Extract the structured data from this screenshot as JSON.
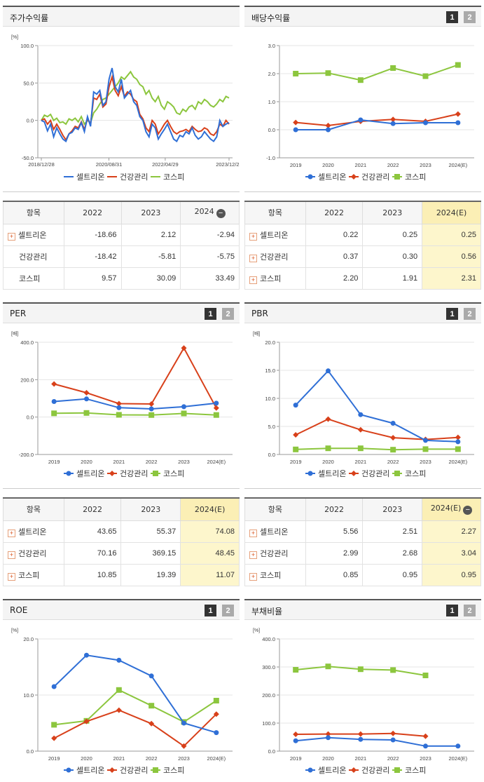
{
  "colors": {
    "celltrion": "#2f6fd6",
    "health": "#d8401a",
    "kospi": "#8cc63e"
  },
  "legend": [
    "셀트리온",
    "건강관리",
    "코스피"
  ],
  "charts": {
    "stock": {
      "title": "주가수익률",
      "unit": "[%]",
      "pager": null,
      "yticks": [
        "100.0",
        "50.0",
        "0.0",
        "-50.0"
      ],
      "xticks": [
        "2018/12/28",
        "2020/08/31",
        "2022/04/29",
        "2023/12/28"
      ]
    },
    "dividend": {
      "title": "배당수익률",
      "unit": "",
      "pager": [
        "1",
        "2"
      ],
      "yticks": [
        "3.0",
        "2.0",
        "1.0",
        "0.0",
        "-1.0"
      ],
      "xticks": [
        "2019",
        "2020",
        "2021",
        "2022",
        "2023",
        "2024(E)"
      ]
    },
    "per": {
      "title": "PER",
      "unit": "[배]",
      "pager": [
        "1",
        "2"
      ],
      "yticks": [
        "400.0",
        "200.0",
        "0.0",
        "-200.0"
      ],
      "xticks": [
        "2019",
        "2020",
        "2021",
        "2022",
        "2023",
        "2024(E)"
      ]
    },
    "pbr": {
      "title": "PBR",
      "unit": "[배]",
      "pager": [
        "1",
        "2"
      ],
      "yticks": [
        "20.0",
        "15.0",
        "10.0",
        "5.0",
        "0.0"
      ],
      "xticks": [
        "2019",
        "2020",
        "2021",
        "2022",
        "2023",
        "2024(E)"
      ]
    },
    "roe": {
      "title": "ROE",
      "unit": "[%]",
      "pager": [
        "1",
        "2"
      ],
      "yticks": [
        "20.0",
        "10.0",
        "0.0"
      ],
      "xticks": [
        "2019",
        "2020",
        "2021",
        "2022",
        "2023",
        "2024(E)"
      ]
    },
    "debt": {
      "title": "부채비율",
      "unit": "[%]",
      "pager": [
        "1",
        "2"
      ],
      "yticks": [
        "400.0",
        "300.0",
        "200.0",
        "100.0",
        "0.0"
      ],
      "xticks": [
        "2019",
        "2020",
        "2021",
        "2022",
        "2023",
        "2024(E)"
      ]
    }
  },
  "chart_data": [
    {
      "type": "line",
      "id": "stock",
      "title": "주가수익률",
      "ylabel": "[%]",
      "ylim": [
        -50,
        100
      ],
      "x_ticks": [
        "2018/12/28",
        "2020/08/31",
        "2022/04/29",
        "2023/12/28"
      ],
      "series": [
        {
          "name": "셀트리온",
          "values": [
            0,
            -2,
            -14,
            -5,
            -22,
            -10,
            -18,
            -25,
            -28,
            -18,
            -16,
            -10,
            -12,
            -3,
            -15,
            5,
            -8,
            38,
            35,
            40,
            20,
            25,
            55,
            70,
            45,
            38,
            55,
            30,
            35,
            40,
            25,
            20,
            5,
            0,
            -15,
            -22,
            -5,
            -10,
            -25,
            -18,
            -12,
            -5,
            -15,
            -25,
            -28,
            -20,
            -22,
            -15,
            -18,
            -10,
            -20,
            -25,
            -22,
            -15,
            -20,
            -25,
            -28,
            -22,
            0,
            -8,
            -5,
            -3
          ]
        },
        {
          "name": "건강관리",
          "values": [
            0,
            2,
            -5,
            0,
            -12,
            -5,
            -12,
            -20,
            -26,
            -18,
            -14,
            -8,
            -10,
            -2,
            -12,
            2,
            -5,
            30,
            28,
            35,
            18,
            22,
            45,
            58,
            40,
            33,
            45,
            32,
            38,
            35,
            28,
            25,
            8,
            2,
            -10,
            -15,
            0,
            -5,
            -18,
            -12,
            -5,
            0,
            -8,
            -15,
            -18,
            -15,
            -14,
            -12,
            -15,
            -8,
            -12,
            -15,
            -14,
            -10,
            -12,
            -18,
            -20,
            -15,
            -5,
            -8,
            0,
            -5
          ]
        },
        {
          "name": "코스피",
          "values": [
            0,
            7,
            5,
            8,
            0,
            3,
            -3,
            -2,
            -5,
            2,
            0,
            3,
            -2,
            5,
            -5,
            0,
            -3,
            10,
            15,
            22,
            28,
            30,
            35,
            40,
            45,
            50,
            58,
            55,
            60,
            65,
            58,
            55,
            48,
            45,
            35,
            40,
            30,
            25,
            32,
            20,
            15,
            25,
            22,
            18,
            10,
            8,
            15,
            12,
            18,
            20,
            15,
            25,
            22,
            28,
            25,
            20,
            18,
            22,
            28,
            25,
            32,
            30
          ]
        }
      ]
    },
    {
      "type": "line",
      "id": "dividend",
      "title": "배당수익률",
      "ylim": [
        -1,
        3
      ],
      "categories": [
        "2019",
        "2020",
        "2021",
        "2022",
        "2023",
        "2024(E)"
      ],
      "series": [
        {
          "name": "셀트리온",
          "values": [
            0.0,
            0.0,
            0.35,
            0.22,
            0.25,
            0.25
          ]
        },
        {
          "name": "건강관리",
          "values": [
            0.26,
            0.15,
            0.3,
            0.37,
            0.3,
            0.56
          ]
        },
        {
          "name": "코스피",
          "values": [
            2.0,
            2.02,
            1.77,
            2.2,
            1.91,
            2.31
          ]
        }
      ]
    },
    {
      "type": "line",
      "id": "per",
      "title": "PER",
      "ylabel": "[배]",
      "ylim": [
        -200,
        400
      ],
      "categories": [
        "2019",
        "2020",
        "2021",
        "2022",
        "2023",
        "2024(E)"
      ],
      "series": [
        {
          "name": "셀트리온",
          "values": [
            83,
            97,
            50,
            43.65,
            55.37,
            74.08
          ]
        },
        {
          "name": "건강관리",
          "values": [
            177,
            130,
            72,
            70.16,
            369.15,
            48.45
          ]
        },
        {
          "name": "코스피",
          "values": [
            20,
            22,
            12,
            10.85,
            19.39,
            11.07
          ]
        }
      ]
    },
    {
      "type": "line",
      "id": "pbr",
      "title": "PBR",
      "ylabel": "[배]",
      "ylim": [
        0,
        20
      ],
      "categories": [
        "2019",
        "2020",
        "2021",
        "2022",
        "2023",
        "2024(E)"
      ],
      "series": [
        {
          "name": "셀트리온",
          "values": [
            8.8,
            14.9,
            7.1,
            5.56,
            2.51,
            2.27
          ]
        },
        {
          "name": "건강관리",
          "values": [
            3.5,
            6.3,
            4.4,
            2.99,
            2.68,
            3.04
          ]
        },
        {
          "name": "코스피",
          "values": [
            0.9,
            1.1,
            1.1,
            0.85,
            0.95,
            0.95
          ]
        }
      ]
    },
    {
      "type": "line",
      "id": "roe",
      "title": "ROE",
      "ylabel": "[%]",
      "ylim": [
        0,
        20
      ],
      "categories": [
        "2019",
        "2020",
        "2021",
        "2022",
        "2023",
        "2024(E)"
      ],
      "series": [
        {
          "name": "셀트리온",
          "values": [
            11.5,
            17.1,
            16.2,
            13.4,
            5.0,
            3.3
          ]
        },
        {
          "name": "건강관리",
          "values": [
            2.3,
            5.3,
            7.3,
            4.9,
            0.9,
            6.6
          ]
        },
        {
          "name": "코스피",
          "values": [
            4.7,
            5.4,
            10.9,
            8.1,
            5.2,
            9.0
          ]
        }
      ]
    },
    {
      "type": "line",
      "id": "debt",
      "title": "부채비율",
      "ylabel": "[%]",
      "ylim": [
        0,
        400
      ],
      "categories": [
        "2019",
        "2020",
        "2021",
        "2022",
        "2023",
        "2024(E)"
      ],
      "series": [
        {
          "name": "셀트리온",
          "values": [
            37,
            48,
            42,
            40,
            18,
            18
          ]
        },
        {
          "name": "건강관리",
          "values": [
            60,
            61,
            61,
            63,
            53,
            null
          ]
        },
        {
          "name": "코스피",
          "values": [
            290,
            302,
            292,
            289,
            270,
            null
          ]
        }
      ]
    }
  ],
  "tables": {
    "stock": {
      "headers": [
        "항목",
        "2022",
        "2023",
        "2024"
      ],
      "minus": true,
      "highlight": false,
      "rows": [
        {
          "plus": true,
          "name": "셀트리온",
          "values": [
            "-18.66",
            "2.12",
            "-2.94"
          ]
        },
        {
          "plus": false,
          "name": "건강관리",
          "values": [
            "-18.42",
            "-5.81",
            "-5.75"
          ]
        },
        {
          "plus": false,
          "name": "코스피",
          "values": [
            "9.57",
            "30.09",
            "33.49"
          ]
        }
      ]
    },
    "dividend": {
      "headers": [
        "항목",
        "2022",
        "2023",
        "2024(E)"
      ],
      "minus": false,
      "highlight": true,
      "rows": [
        {
          "plus": true,
          "name": "셀트리온",
          "values": [
            "0.22",
            "0.25",
            "0.25"
          ]
        },
        {
          "plus": true,
          "name": "건강관리",
          "values": [
            "0.37",
            "0.30",
            "0.56"
          ]
        },
        {
          "plus": true,
          "name": "코스피",
          "values": [
            "2.20",
            "1.91",
            "2.31"
          ]
        }
      ]
    },
    "per": {
      "headers": [
        "항목",
        "2022",
        "2023",
        "2024(E)"
      ],
      "minus": false,
      "highlight": true,
      "rows": [
        {
          "plus": true,
          "name": "셀트리온",
          "values": [
            "43.65",
            "55.37",
            "74.08"
          ]
        },
        {
          "plus": true,
          "name": "건강관리",
          "values": [
            "70.16",
            "369.15",
            "48.45"
          ]
        },
        {
          "plus": true,
          "name": "코스피",
          "values": [
            "10.85",
            "19.39",
            "11.07"
          ]
        }
      ]
    },
    "pbr": {
      "headers": [
        "항목",
        "2022",
        "2023",
        "2024(E)"
      ],
      "minus": true,
      "highlight": true,
      "rows": [
        {
          "plus": true,
          "name": "셀트리온",
          "values": [
            "5.56",
            "2.51",
            "2.27"
          ]
        },
        {
          "plus": true,
          "name": "건강관리",
          "values": [
            "2.99",
            "2.68",
            "3.04"
          ]
        },
        {
          "plus": true,
          "name": "코스피",
          "values": [
            "0.85",
            "0.95",
            "0.95"
          ]
        }
      ]
    }
  }
}
